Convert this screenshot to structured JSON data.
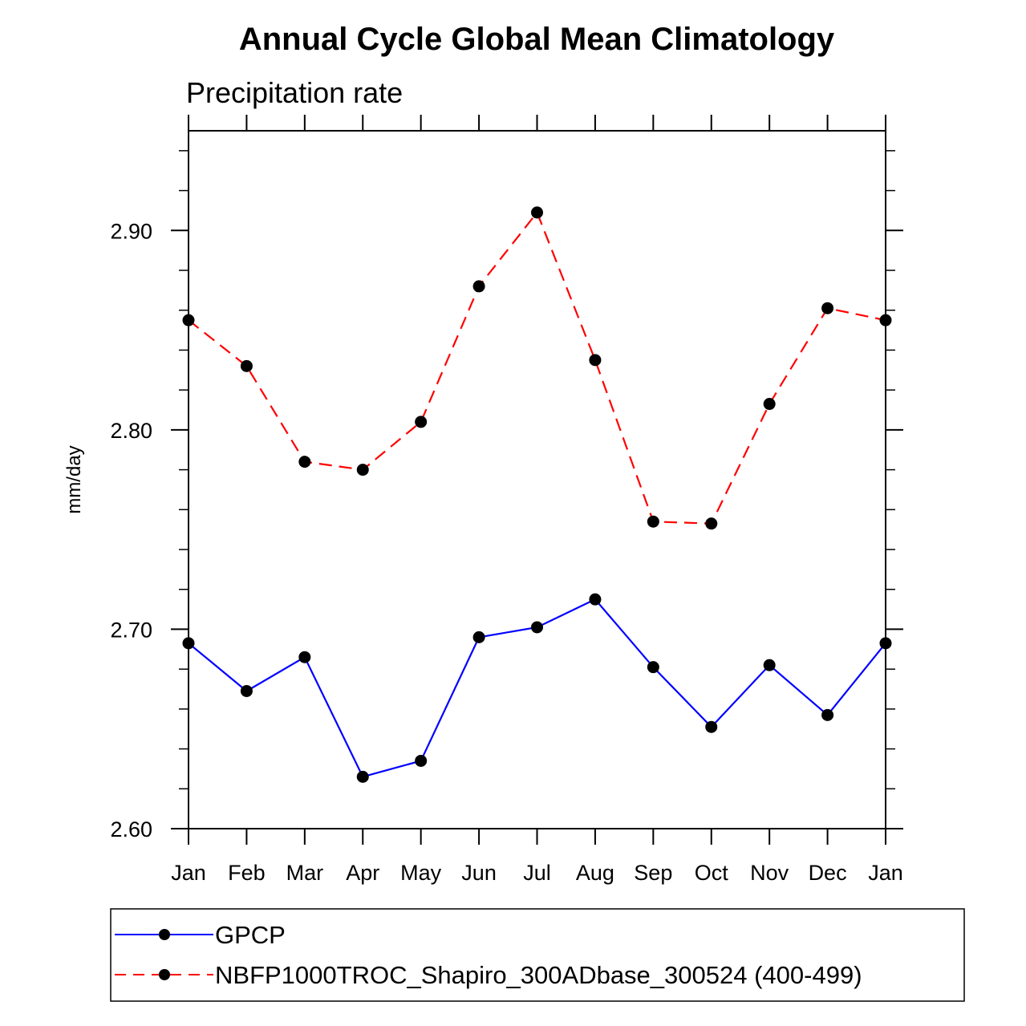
{
  "chart_data": {
    "type": "line",
    "title": "Annual Cycle Global Mean Climatology",
    "subtitle": "Precipitation rate",
    "xlabel": "",
    "ylabel": "mm/day",
    "categories": [
      "Jan",
      "Feb",
      "Mar",
      "Apr",
      "May",
      "Jun",
      "Jul",
      "Aug",
      "Sep",
      "Oct",
      "Nov",
      "Dec",
      "Jan"
    ],
    "ylim": [
      2.6,
      2.95
    ],
    "yticks": [
      2.6,
      2.7,
      2.8,
      2.9
    ],
    "ytick_labels": [
      "2.60",
      "2.70",
      "2.80",
      "2.90"
    ],
    "yminor_step": 0.02,
    "grid": false,
    "legend_position": "bottom",
    "series": [
      {
        "name": "GPCP",
        "color": "#0000ff",
        "dash": "solid",
        "marker": "filled-circle",
        "values": [
          2.693,
          2.669,
          2.686,
          2.626,
          2.634,
          2.696,
          2.701,
          2.715,
          2.681,
          2.651,
          2.682,
          2.657,
          2.693
        ]
      },
      {
        "name": "NBFP1000TROC_Shapiro_300ADbase_300524 (400-499)",
        "color": "#ff0000",
        "dash": "dashed",
        "marker": "filled-circle",
        "values": [
          2.855,
          2.832,
          2.784,
          2.78,
          2.804,
          2.872,
          2.909,
          2.835,
          2.754,
          2.753,
          2.813,
          2.861,
          2.855
        ]
      }
    ]
  }
}
